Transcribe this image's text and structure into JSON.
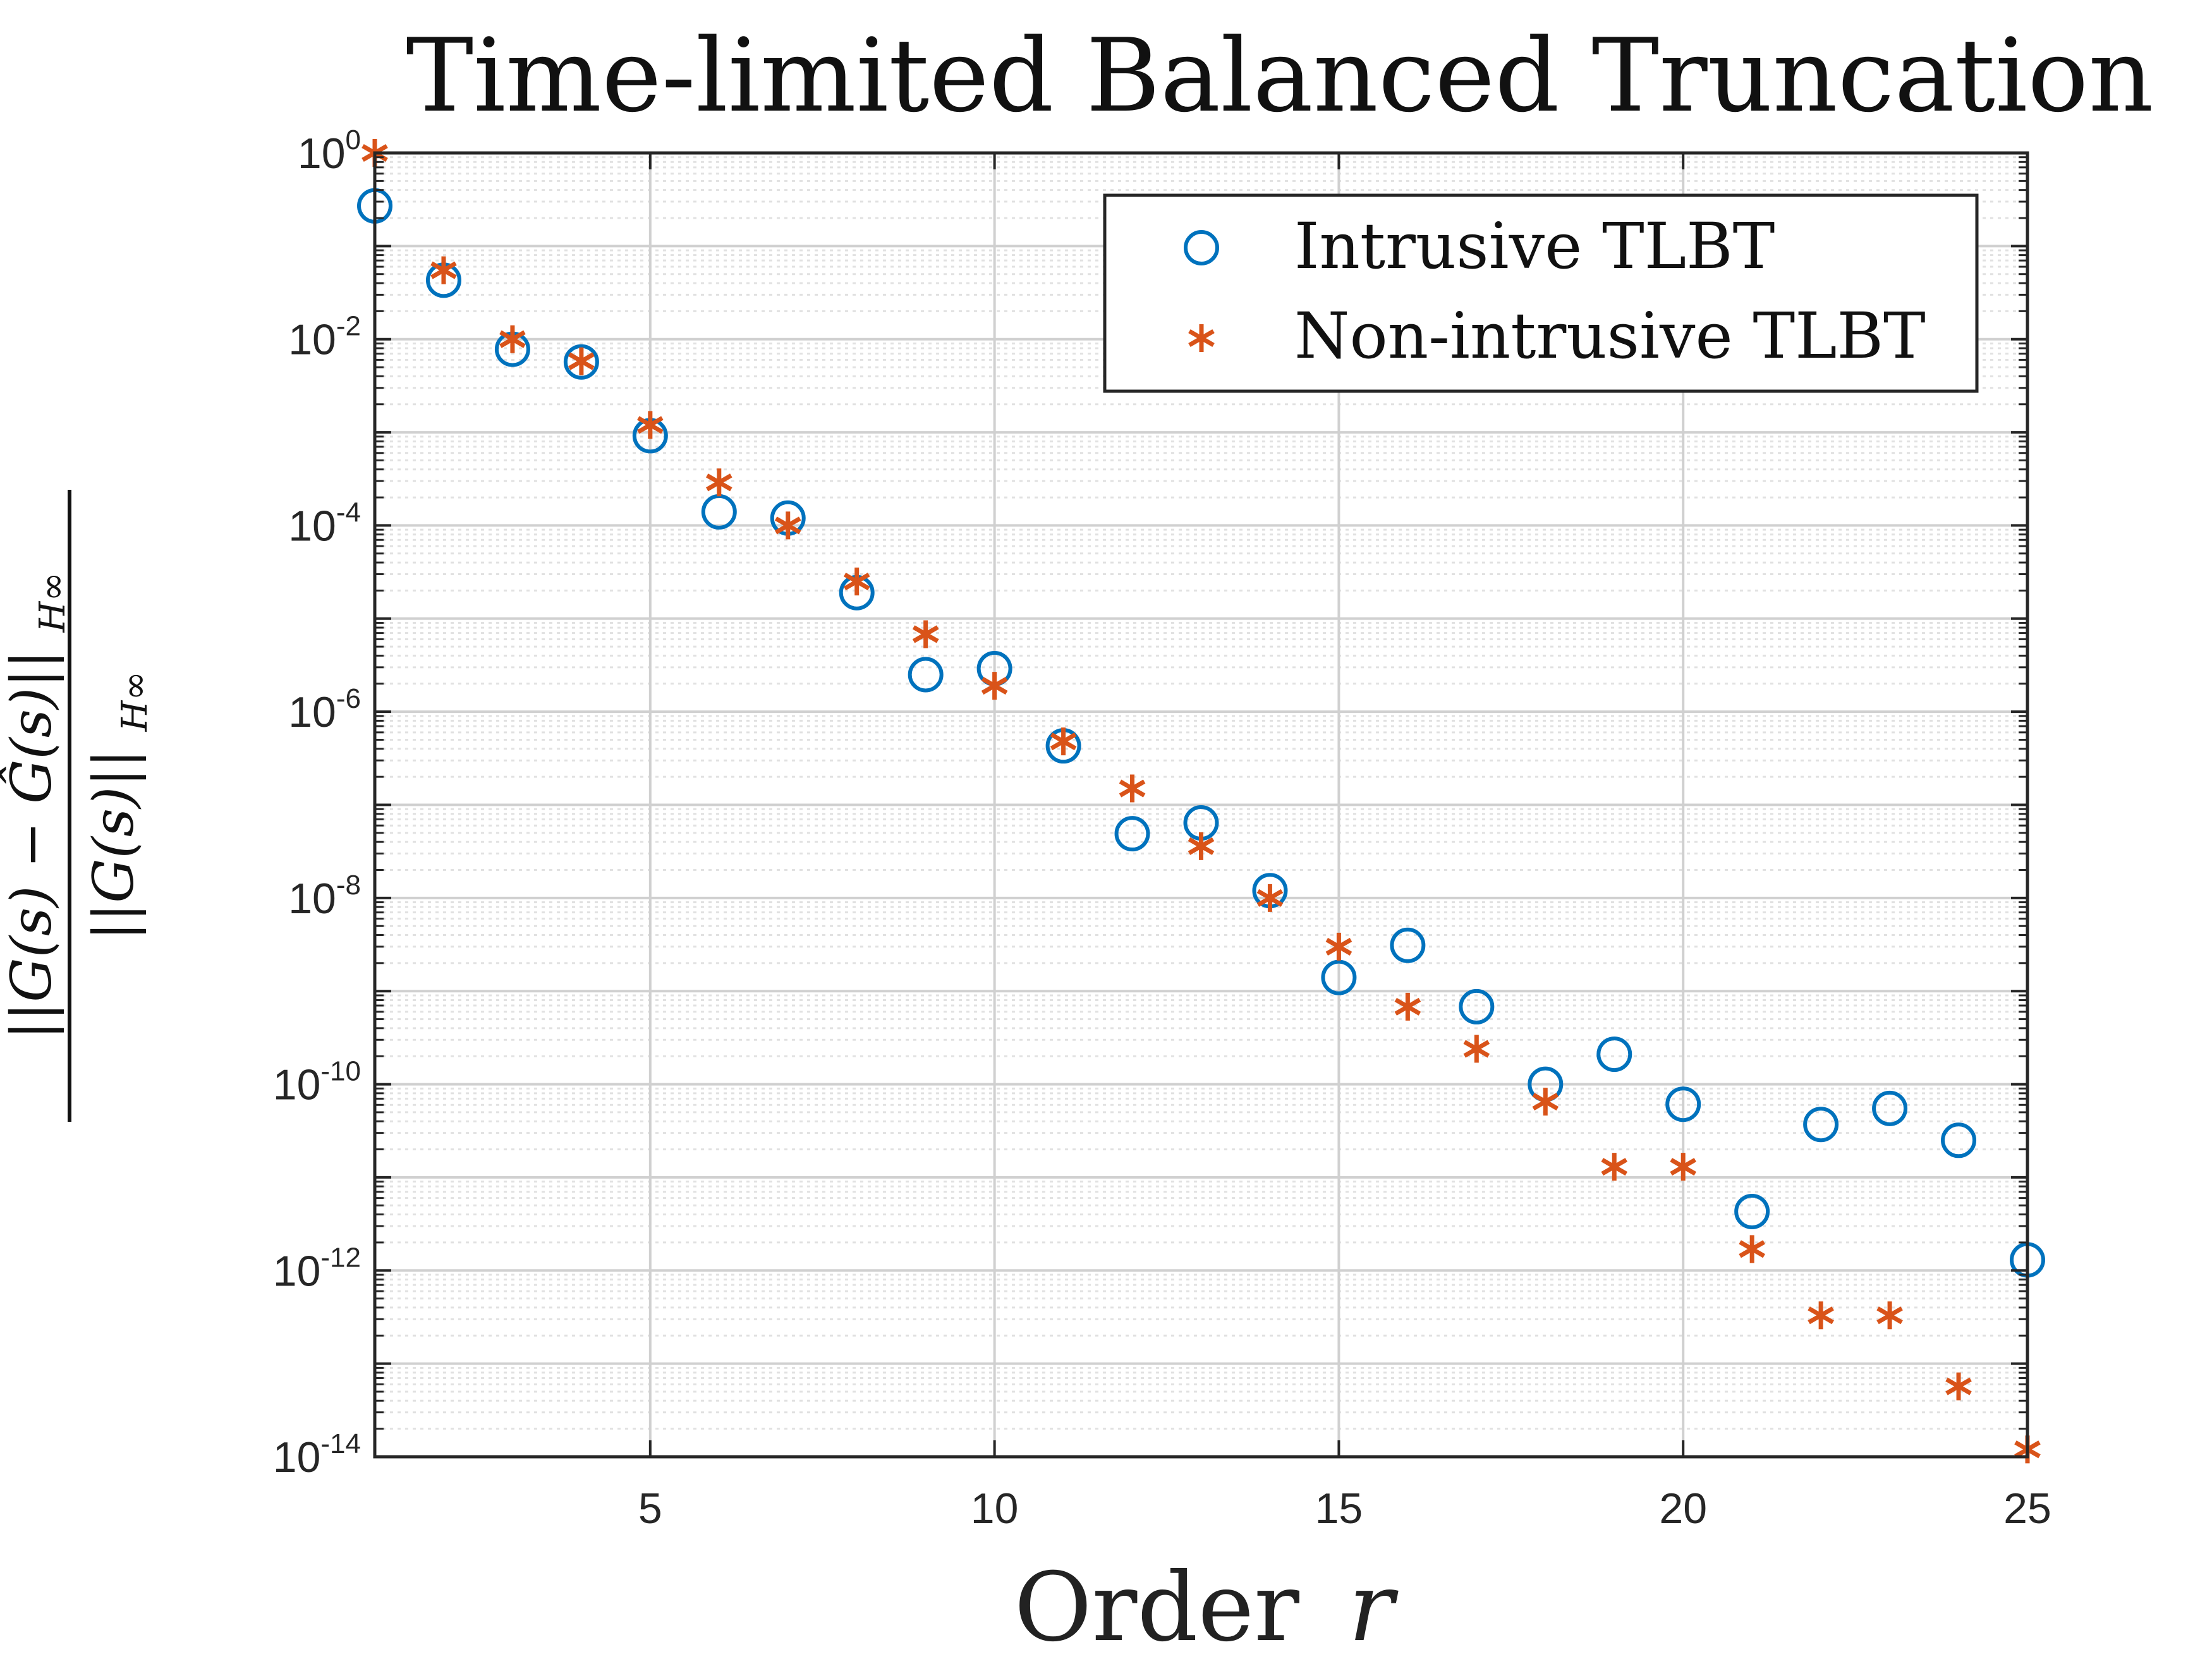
{
  "chart_data": {
    "type": "scatter",
    "title": "Time-limited Balanced Truncation",
    "xlabel": "Order r",
    "xlabel_parts": {
      "text": "Order",
      "var": "r"
    },
    "ylabel": "||G(s) − Ĝ(s)||H∞ / ||G(s)||H∞",
    "ylabel_parts": {
      "numerator": "||G(s) − Ĝ(s)||",
      "denominator": "||G(s)||",
      "subscript": "H∞"
    },
    "xlim": [
      1,
      25
    ],
    "ylim": [
      1e-14,
      1
    ],
    "yscale": "log",
    "grid": true,
    "minor_grid": true,
    "legend_position": "top-right",
    "xticks": [
      5,
      10,
      15,
      20,
      25
    ],
    "yticks": [
      {
        "base": "10",
        "exp": "0"
      },
      {
        "base": "10",
        "exp": "-2"
      },
      {
        "base": "10",
        "exp": "-4"
      },
      {
        "base": "10",
        "exp": "-6"
      },
      {
        "base": "10",
        "exp": "-8"
      },
      {
        "base": "10",
        "exp": "-10"
      },
      {
        "base": "10",
        "exp": "-12"
      },
      {
        "base": "10",
        "exp": "-14"
      }
    ],
    "x": [
      1,
      2,
      3,
      4,
      5,
      6,
      7,
      8,
      9,
      10,
      11,
      12,
      13,
      14,
      15,
      16,
      17,
      18,
      19,
      20,
      21,
      22,
      23,
      24,
      25
    ],
    "series": [
      {
        "name": "Intrusive TLBT",
        "marker": "circle",
        "color": "#0072BD",
        "values": [
          0.27,
          0.043,
          0.0078,
          0.0057,
          0.00092,
          0.00014,
          0.00012,
          1.9e-05,
          2.5e-06,
          2.9e-06,
          4.3e-07,
          4.9e-08,
          6.4e-08,
          1.2e-08,
          1.4e-09,
          3.1e-09,
          6.8e-10,
          1e-10,
          2.1e-10,
          6.1e-11,
          4.3e-12,
          3.7e-11,
          5.5e-11,
          2.5e-11,
          1.3e-12
        ]
      },
      {
        "name": "Non-intrusive TLBT",
        "marker": "asterisk",
        "color": "#D95319",
        "values": [
          1.0,
          0.055,
          0.01,
          0.0058,
          0.0012,
          0.00029,
          0.0001,
          2.5e-05,
          6.8e-06,
          1.9e-06,
          4.8e-07,
          1.5e-07,
          3.6e-08,
          1e-08,
          3e-09,
          6.8e-10,
          2.4e-10,
          6.5e-11,
          1.3e-11,
          1.3e-11,
          1.7e-12,
          3.3e-13,
          3.3e-13,
          5.7e-14,
          1.2e-14
        ]
      }
    ]
  }
}
